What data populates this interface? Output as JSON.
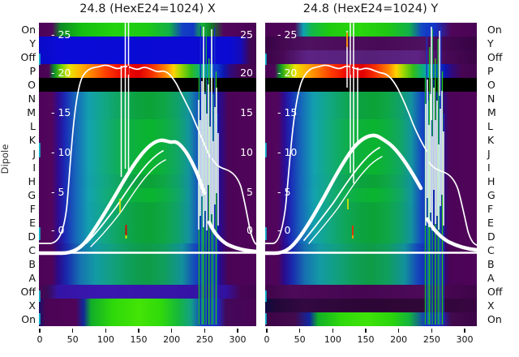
{
  "titles": {
    "left": "24.8 (HexE24=1024) X",
    "right": "24.8 (HexE24=1024) Y"
  },
  "y_axis_label": "Dipole",
  "row_labels": [
    "On",
    "Y",
    "Off",
    "P",
    "O",
    "N",
    "M",
    "L",
    "K",
    "J",
    "I",
    "H",
    "G",
    "F",
    "E",
    "D",
    "C",
    "B",
    "A",
    "Off",
    "X",
    "On"
  ],
  "x_tick_labels": [
    "0",
    "50",
    "100",
    "150",
    "200",
    "250",
    "300"
  ],
  "inner_tick_labels_left": [
    "- 25",
    "- 20",
    "- 15",
    "- 10",
    "- 5",
    "- 0"
  ],
  "inner_tick_labels_right": [
    "25",
    "20",
    "15",
    "10",
    "5",
    "0"
  ],
  "colors": {
    "background": "#ffffff",
    "purple_edge": "#500459",
    "blue_band": "#0b0bd8",
    "black_band": "#000000",
    "hot_red": "#e00000",
    "body_green": "#0ca23e",
    "bottom_green": "#3fe309",
    "indigo_band": "#3a17ae",
    "overlay_curve": "#ffffff",
    "marker_yellow": "#e8e400",
    "marker_red": "#e00000",
    "marker_orange": "#ff8c00"
  },
  "chart_data": {
    "type": "heatmap",
    "approx": true,
    "panels": [
      {
        "title": "24.8 (HexE24=1024) X",
        "x_ticks": [
          0,
          50,
          100,
          150,
          200,
          250,
          300
        ],
        "inner_scale_ticks": [
          25,
          20,
          15,
          10,
          5,
          0
        ],
        "inner_labels_left_side": true,
        "inner_labels_right_side": true
      },
      {
        "title": "24.8 (HexE24=1024) Y",
        "x_ticks": [
          0,
          50,
          100,
          150,
          200,
          250,
          300
        ],
        "inner_scale_ticks": [
          25,
          20,
          15,
          10,
          5,
          0
        ],
        "inner_labels_left_side": true,
        "inner_labels_right_side": false
      }
    ],
    "y_categories": [
      "On",
      "Y",
      "Off",
      "P",
      "O",
      "N",
      "M",
      "L",
      "K",
      "J",
      "I",
      "H",
      "G",
      "F",
      "E",
      "D",
      "C",
      "B",
      "A",
      "Off",
      "X",
      "On"
    ],
    "x_range": [
      0,
      330
    ],
    "row_band_summary": {
      "On_top": "purple edges, bright green center, blue patch near x=240",
      "Y_Off_left_panel": "solid bright blue band",
      "Y_Off_right_panel": "dark purple with lighter violet center",
      "P": "hot rainbow band: green-yellow-orange-red center, cyan-blue-purple right",
      "O": "solid black",
      "N_to_A": "purple margins, blue-teal-green gradient body, green center near x=160",
      "Off_lower_left_panel": "indigo-violet full-width band",
      "Off_lower_right_panel": "dark purple full-width band",
      "X_On_bottom": "purple margins, bright lime-green band x=80-230, blue x=245-270"
    },
    "overlays": {
      "curves": [
        {
          "name": "tall-profile",
          "color": "white",
          "description": "flat near 1 at both edges, steep rise near x=40, wobbly plateau about 21-22 on inner scale over x=65-160, descends to shoulder then flat near 1"
        },
        {
          "name": "broad-profile",
          "color": "white",
          "thick": true,
          "description": "bell shape, baseline near 0, peak about 14 on inner scale near x=160-175, with 2-3 echo strands beneath the rising flank"
        }
      ],
      "spike_clusters": [
        {
          "x_about": 130,
          "description": "two or three tall white vertical spikes reaching panel top"
        },
        {
          "x_about": 255,
          "description": "dense cluster of white spikes over green/blue vertical stripes"
        }
      ],
      "horizontal_white_line_row": "C/B boundary",
      "colored_markers": [
        {
          "panel": "X",
          "color": "yellow",
          "near_inner_value": 6
        },
        {
          "panel": "X",
          "color": "red",
          "near_inner_value": 1
        },
        {
          "panel": "Y",
          "color": "orange",
          "near_inner_value": 24
        },
        {
          "panel": "Y",
          "color": "red",
          "near_inner_value": 22
        },
        {
          "panel": "Y",
          "color": "yellow",
          "near_inner_value": 6
        },
        {
          "panel": "Y",
          "color": "red",
          "near_inner_value": 1
        }
      ]
    }
  }
}
